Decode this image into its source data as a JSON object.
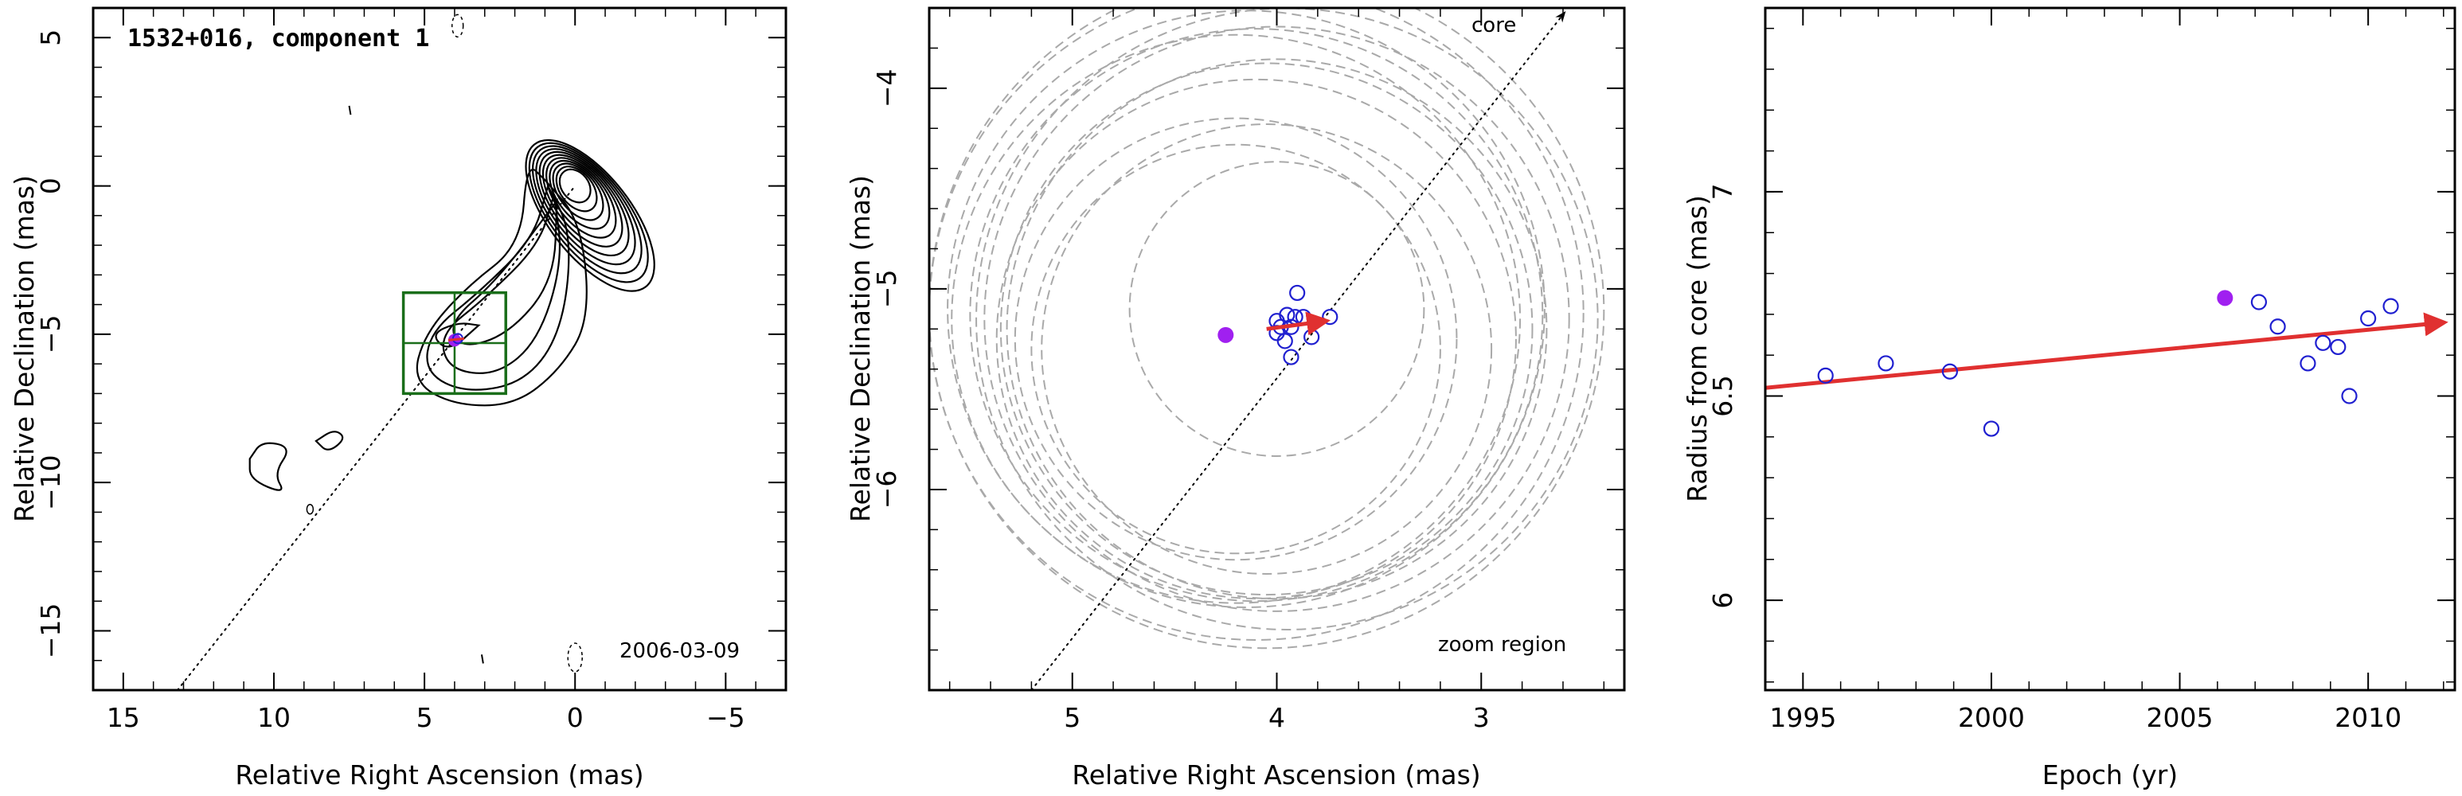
{
  "chart_data": [
    {
      "type": "contour",
      "title": "1532+016, component 1",
      "date_label": "2006-03-09",
      "xlabel": "Relative Right Ascension (mas)",
      "ylabel": "Relative Declination (mas)",
      "xlim": [
        16,
        -7
      ],
      "ylim": [
        -17,
        6
      ],
      "xticks": [
        15,
        10,
        5,
        0,
        -5
      ],
      "yticks": [
        5,
        0,
        -5,
        -10,
        -15
      ],
      "x_tick_labels": [
        "15",
        "10",
        "5",
        "0",
        "−5"
      ],
      "y_tick_labels": [
        "5",
        "0",
        "−5",
        "−10",
        "−15"
      ],
      "colors": {
        "contour": "#000000",
        "box": "#1a6e1a",
        "arrow": "#e03030",
        "point": "#2020d0",
        "fill": "#a020f0"
      },
      "zoom_box": {
        "x": [
          2.3,
          5.7
        ],
        "y": [
          -7.0,
          -3.6
        ]
      },
      "component": {
        "x": 4.0,
        "y": -5.2
      },
      "jet_axis": {
        "from": [
          13.2,
          -17
        ],
        "to": [
          0,
          0
        ]
      }
    },
    {
      "type": "scatter",
      "annotation_core": "core",
      "annotation_zoom": "zoom region",
      "xlabel": "Relative Right Ascension (mas)",
      "ylabel": "Relative Declination (mas)",
      "xlim": [
        5.7,
        2.3
      ],
      "ylim": [
        -7.0,
        -3.6
      ],
      "xticks": [
        5,
        4,
        3
      ],
      "yticks": [
        -4,
        -5,
        -6
      ],
      "x_tick_labels": [
        "5",
        "4",
        "3"
      ],
      "y_tick_labels": [
        "−4",
        "−5",
        "−6"
      ],
      "points": [
        {
          "x": 3.9,
          "y": -5.02
        },
        {
          "x": 3.95,
          "y": -5.13
        },
        {
          "x": 3.91,
          "y": -5.14
        },
        {
          "x": 3.87,
          "y": -5.14
        },
        {
          "x": 4.0,
          "y": -5.16
        },
        {
          "x": 3.98,
          "y": -5.19
        },
        {
          "x": 3.93,
          "y": -5.19
        },
        {
          "x": 3.74,
          "y": -5.14
        },
        {
          "x": 3.83,
          "y": -5.24
        },
        {
          "x": 4.0,
          "y": -5.22
        },
        {
          "x": 3.96,
          "y": -5.26
        },
        {
          "x": 3.93,
          "y": -5.34
        }
      ],
      "highlight_point": {
        "x": 4.25,
        "y": -5.23
      },
      "motion_vector": {
        "from": [
          4.05,
          -5.2
        ],
        "to": [
          3.76,
          -5.16
        ]
      },
      "beam_circles": [
        {
          "x": 4.0,
          "y": -5.1,
          "r": 0.72
        },
        {
          "x": 4.2,
          "y": -5.3,
          "r": 1.0
        },
        {
          "x": 4.2,
          "y": -5.25,
          "r": 1.08
        },
        {
          "x": 4.05,
          "y": -5.3,
          "r": 1.1
        },
        {
          "x": 4.1,
          "y": -5.25,
          "r": 1.27
        },
        {
          "x": 4.05,
          "y": -5.2,
          "r": 1.3
        },
        {
          "x": 4.0,
          "y": -5.2,
          "r": 1.32
        },
        {
          "x": 4.2,
          "y": -5.15,
          "r": 1.39
        },
        {
          "x": 4.1,
          "y": -5.13,
          "r": 1.4
        },
        {
          "x": 4.0,
          "y": -5.15,
          "r": 1.43
        },
        {
          "x": 4.15,
          "y": -5.1,
          "r": 1.46
        },
        {
          "x": 3.95,
          "y": -5.15,
          "r": 1.52
        },
        {
          "x": 4.1,
          "y": -5.12,
          "r": 1.6
        },
        {
          "x": 4.05,
          "y": -5.11,
          "r": 1.65
        }
      ],
      "jet_axis": {
        "from": [
          5.2,
          -7.0
        ],
        "to": [
          2.59,
          -3.62
        ]
      }
    },
    {
      "type": "scatter",
      "xlabel": "Epoch (yr)",
      "ylabel": "Radius from core (mas)",
      "xlim": [
        1994,
        2012.3
      ],
      "ylim": [
        5.78,
        7.45
      ],
      "xticks": [
        1995,
        2000,
        2005,
        2010
      ],
      "yticks": [
        6,
        6.5,
        7
      ],
      "x_tick_labels": [
        "1995",
        "2000",
        "2005",
        "2010"
      ],
      "y_tick_labels": [
        "6",
        "6.5",
        "7"
      ],
      "x": [
        1995.6,
        1997.2,
        1998.9,
        2000.0,
        2007.1,
        2007.6,
        2008.4,
        2008.8,
        2009.2,
        2009.5,
        2010.0,
        2010.6
      ],
      "y": [
        6.55,
        6.58,
        6.56,
        6.42,
        6.73,
        6.67,
        6.58,
        6.63,
        6.62,
        6.5,
        6.69,
        6.72
      ],
      "highlight_point": {
        "x": 2006.2,
        "y": 6.74
      },
      "trend": {
        "from": [
          1994.0,
          6.52
        ],
        "to": [
          2012.0,
          6.68
        ]
      }
    }
  ]
}
